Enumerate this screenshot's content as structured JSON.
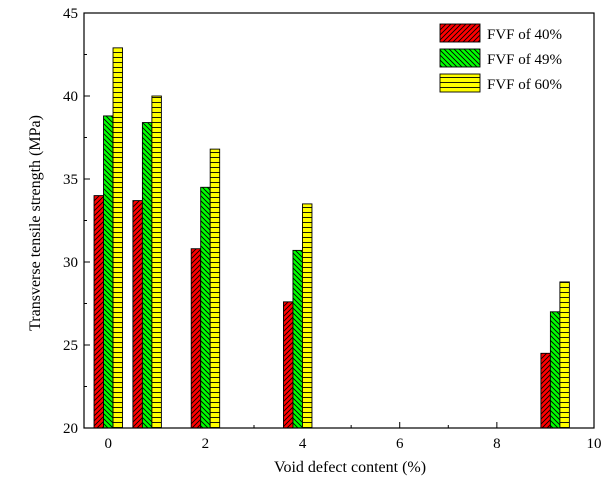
{
  "chart_data": {
    "type": "bar",
    "xlabel": "Void defect content (%)",
    "ylabel": "Transverse tensile strength (MPa)",
    "xlim": [
      -0.5,
      10
    ],
    "ylim": [
      20,
      45
    ],
    "xticks": [
      0,
      2,
      4,
      6,
      8,
      10
    ],
    "yticks": [
      20,
      25,
      30,
      35,
      40,
      45
    ],
    "legend_position": "top-right",
    "series": [
      {
        "name": "FVF of 40%",
        "color": "#ff0000",
        "pattern": "diagonal-forward",
        "points": [
          {
            "x": 0.0,
            "y": 34.0
          },
          {
            "x": 0.8,
            "y": 33.7
          },
          {
            "x": 2.0,
            "y": 30.8
          },
          {
            "x": 3.9,
            "y": 27.6
          },
          {
            "x": 9.2,
            "y": 24.5
          }
        ]
      },
      {
        "name": "FVF of 49%",
        "color": "#00ff00",
        "pattern": "diagonal-back",
        "points": [
          {
            "x": 0.0,
            "y": 38.8
          },
          {
            "x": 0.8,
            "y": 38.4
          },
          {
            "x": 2.0,
            "y": 34.5
          },
          {
            "x": 3.9,
            "y": 30.7
          },
          {
            "x": 9.2,
            "y": 27.0
          }
        ]
      },
      {
        "name": "FVF of 60%",
        "color": "#ffff00",
        "pattern": "horizontal-lines",
        "points": [
          {
            "x": 0.0,
            "y": 42.9
          },
          {
            "x": 0.8,
            "y": 40.0
          },
          {
            "x": 2.0,
            "y": 36.8
          },
          {
            "x": 3.9,
            "y": 33.5
          },
          {
            "x": 9.2,
            "y": 28.8
          }
        ]
      }
    ]
  }
}
